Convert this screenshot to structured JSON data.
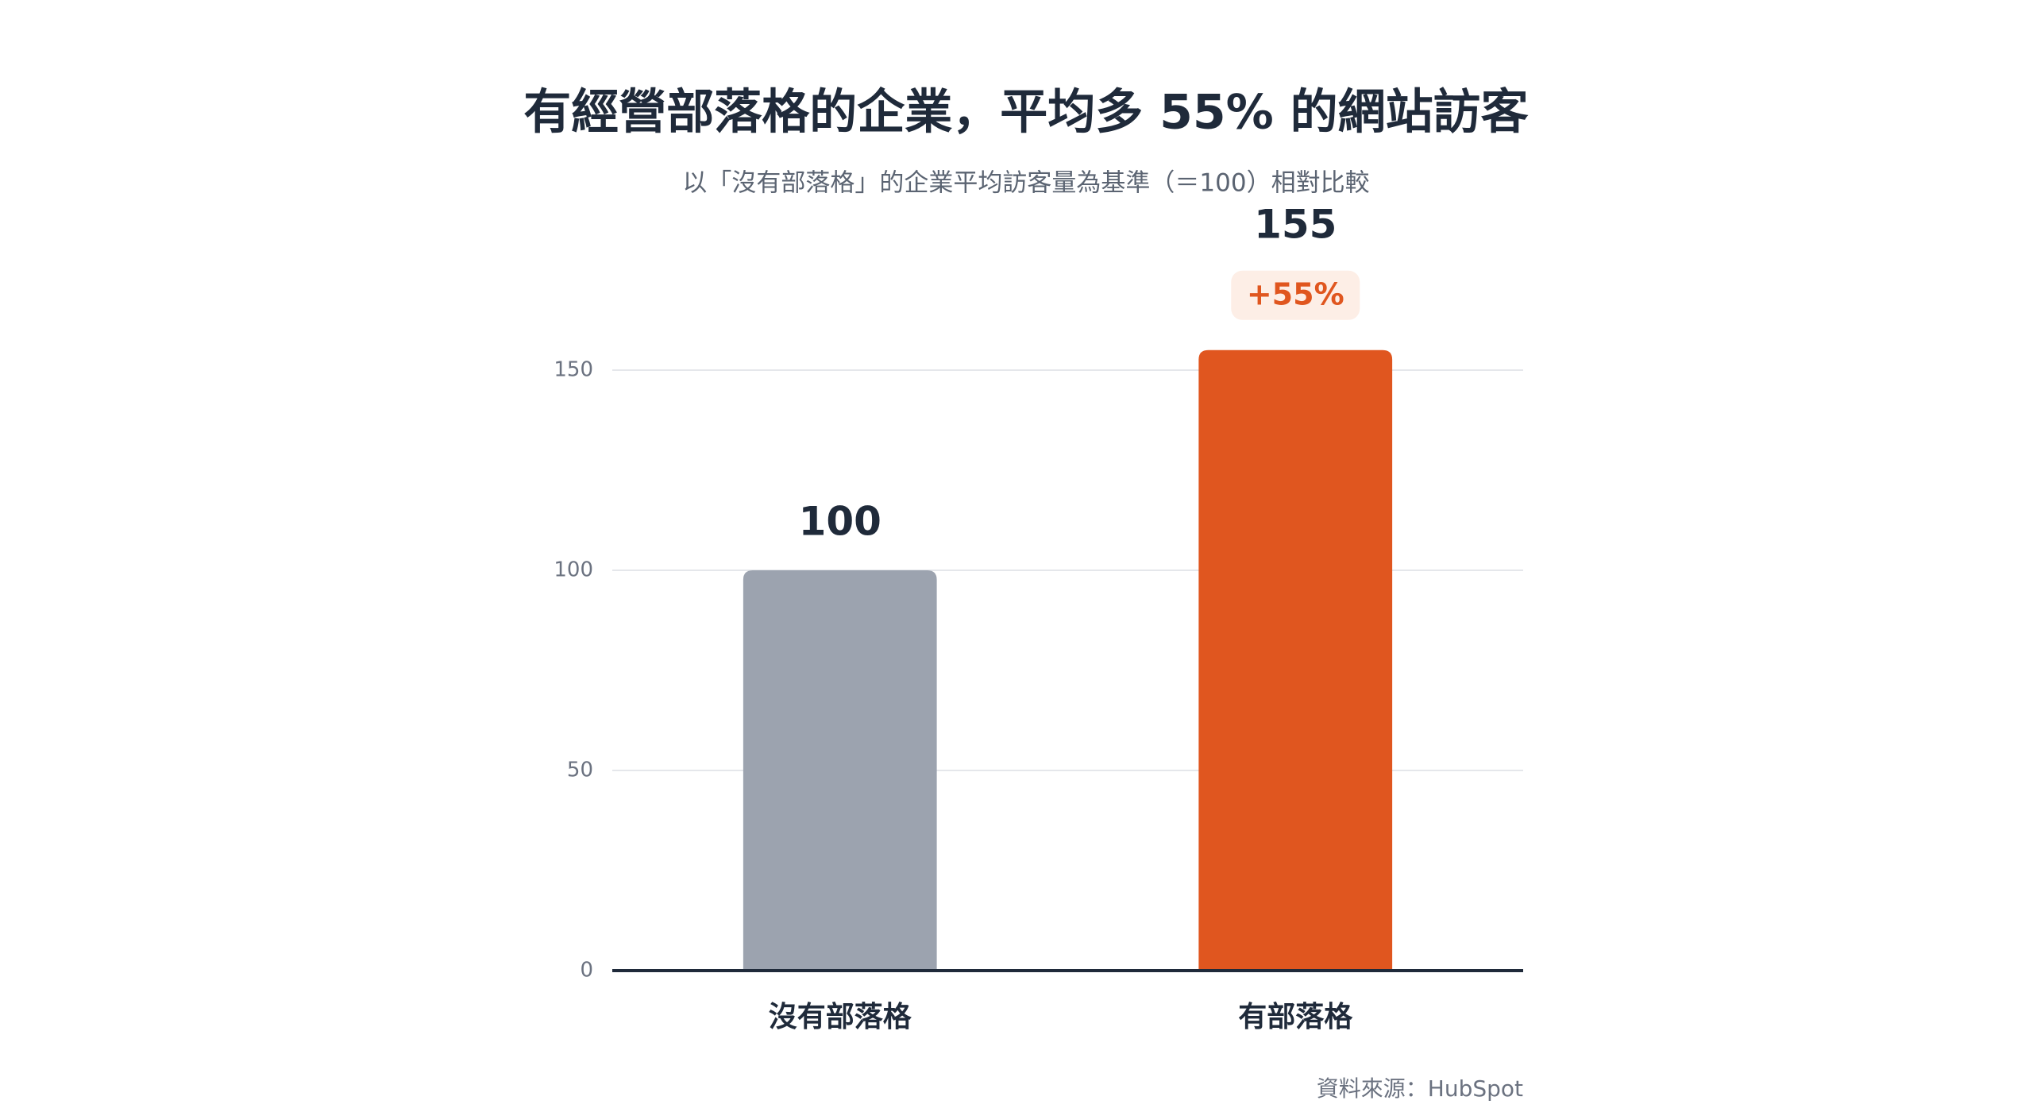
{
  "chart_data": {
    "type": "bar",
    "title": "有經營部落格的企業，平均多 55% 的網站訪客",
    "subtitle": "以「沒有部落格」的企業平均訪客量為基準（＝100）相對比較",
    "categories": [
      "沒有部落格",
      "有部落格"
    ],
    "values": [
      100,
      155
    ],
    "colors": [
      "#9ca3af",
      "#e0561f"
    ],
    "annotation": "+55%",
    "source": "資料來源：HubSpot",
    "ylim": [
      0,
      150
    ],
    "yticks": [
      0,
      50,
      100,
      150
    ],
    "grid": true
  }
}
